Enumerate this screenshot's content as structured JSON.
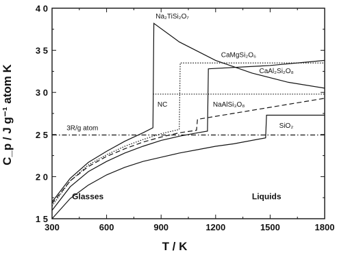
{
  "chart_data": {
    "type": "line",
    "xlabel": "T / K",
    "ylabel": "C_p / J g⁻¹ atom K",
    "xlim": [
      300,
      1800
    ],
    "ylim": [
      1.5,
      4.0
    ],
    "x_ticks": [
      300,
      600,
      900,
      1200,
      1500,
      1800
    ],
    "y_ticks": [
      {
        "value": 1.5,
        "label": "1 5"
      },
      {
        "value": 2.0,
        "label": "2 0"
      },
      {
        "value": 2.5,
        "label": "2 5"
      },
      {
        "value": 3.0,
        "label": "3 0"
      },
      {
        "value": 3.5,
        "label": "3 5"
      },
      {
        "value": 4.0,
        "label": "4 0"
      }
    ],
    "grid": false,
    "series": [
      {
        "name": "Na₂TiSi₂O₇",
        "style": "solid",
        "x": [
          300,
          400,
          500,
          600,
          700,
          800,
          855,
          860,
          1000,
          1200,
          1400,
          1600,
          1800
        ],
        "y": [
          1.7,
          1.98,
          2.17,
          2.3,
          2.42,
          2.52,
          2.58,
          3.82,
          3.6,
          3.38,
          3.23,
          3.12,
          3.05
        ]
      },
      {
        "name": "CaMgSi₂O₆",
        "style": "dotted",
        "x": [
          300,
          400,
          500,
          600,
          700,
          800,
          900,
          1000,
          1005,
          1800
        ],
        "y": [
          1.65,
          1.95,
          2.14,
          2.26,
          2.36,
          2.44,
          2.51,
          2.56,
          3.35,
          3.35
        ]
      },
      {
        "name": "CaAl₂Si₂O₈",
        "style": "solid",
        "x": [
          300,
          400,
          500,
          600,
          700,
          800,
          900,
          1000,
          1100,
          1155,
          1160,
          1500,
          1800
        ],
        "y": [
          1.6,
          1.88,
          2.06,
          2.18,
          2.28,
          2.36,
          2.43,
          2.48,
          2.52,
          2.54,
          3.28,
          3.32,
          3.38
        ]
      },
      {
        "name": "NaAlSi₃O₈",
        "style": "dashed",
        "x": [
          300,
          400,
          500,
          600,
          700,
          800,
          900,
          1000,
          1095,
          1100,
          1800
        ],
        "y": [
          1.68,
          1.95,
          2.12,
          2.24,
          2.33,
          2.41,
          2.47,
          2.52,
          2.55,
          2.68,
          2.93
        ]
      },
      {
        "name": "SiO₂",
        "style": "solid",
        "x": [
          300,
          400,
          500,
          600,
          700,
          800,
          900,
          1000,
          1100,
          1200,
          1300,
          1475,
          1480,
          1800
        ],
        "y": [
          1.5,
          1.74,
          1.9,
          2.02,
          2.11,
          2.18,
          2.23,
          2.28,
          2.32,
          2.36,
          2.39,
          2.46,
          2.73,
          2.73
        ]
      },
      {
        "name": "NC",
        "style": "dotted",
        "x": [
          855,
          1800
        ],
        "y": [
          2.98,
          2.98
        ]
      },
      {
        "name": "3R/g atom",
        "style": "dashdot",
        "x": [
          300,
          1800
        ],
        "y": [
          2.494,
          2.494
        ]
      }
    ],
    "annotations": [
      {
        "text": "Na₂TiSi₂O₇",
        "x": 870,
        "y": 3.88,
        "kind": "label"
      },
      {
        "text": "CaMgSi₂O₆",
        "x": 1230,
        "y": 3.42,
        "kind": "label"
      },
      {
        "text": "CaAl₂Si₂O₈",
        "x": 1440,
        "y": 3.23,
        "kind": "label"
      },
      {
        "text": "NC",
        "x": 880,
        "y": 2.83,
        "kind": "label"
      },
      {
        "text": "NaAlSi₃O₈",
        "x": 1185,
        "y": 2.83,
        "kind": "label"
      },
      {
        "text": "SiO₂",
        "x": 1550,
        "y": 2.58,
        "kind": "label"
      },
      {
        "text": "3R/g atom",
        "x": 380,
        "y": 2.55,
        "kind": "label"
      },
      {
        "text": "Glasses",
        "x": 410,
        "y": 1.73,
        "kind": "region"
      },
      {
        "text": "Liquids",
        "x": 1400,
        "y": 1.73,
        "kind": "region"
      }
    ]
  }
}
